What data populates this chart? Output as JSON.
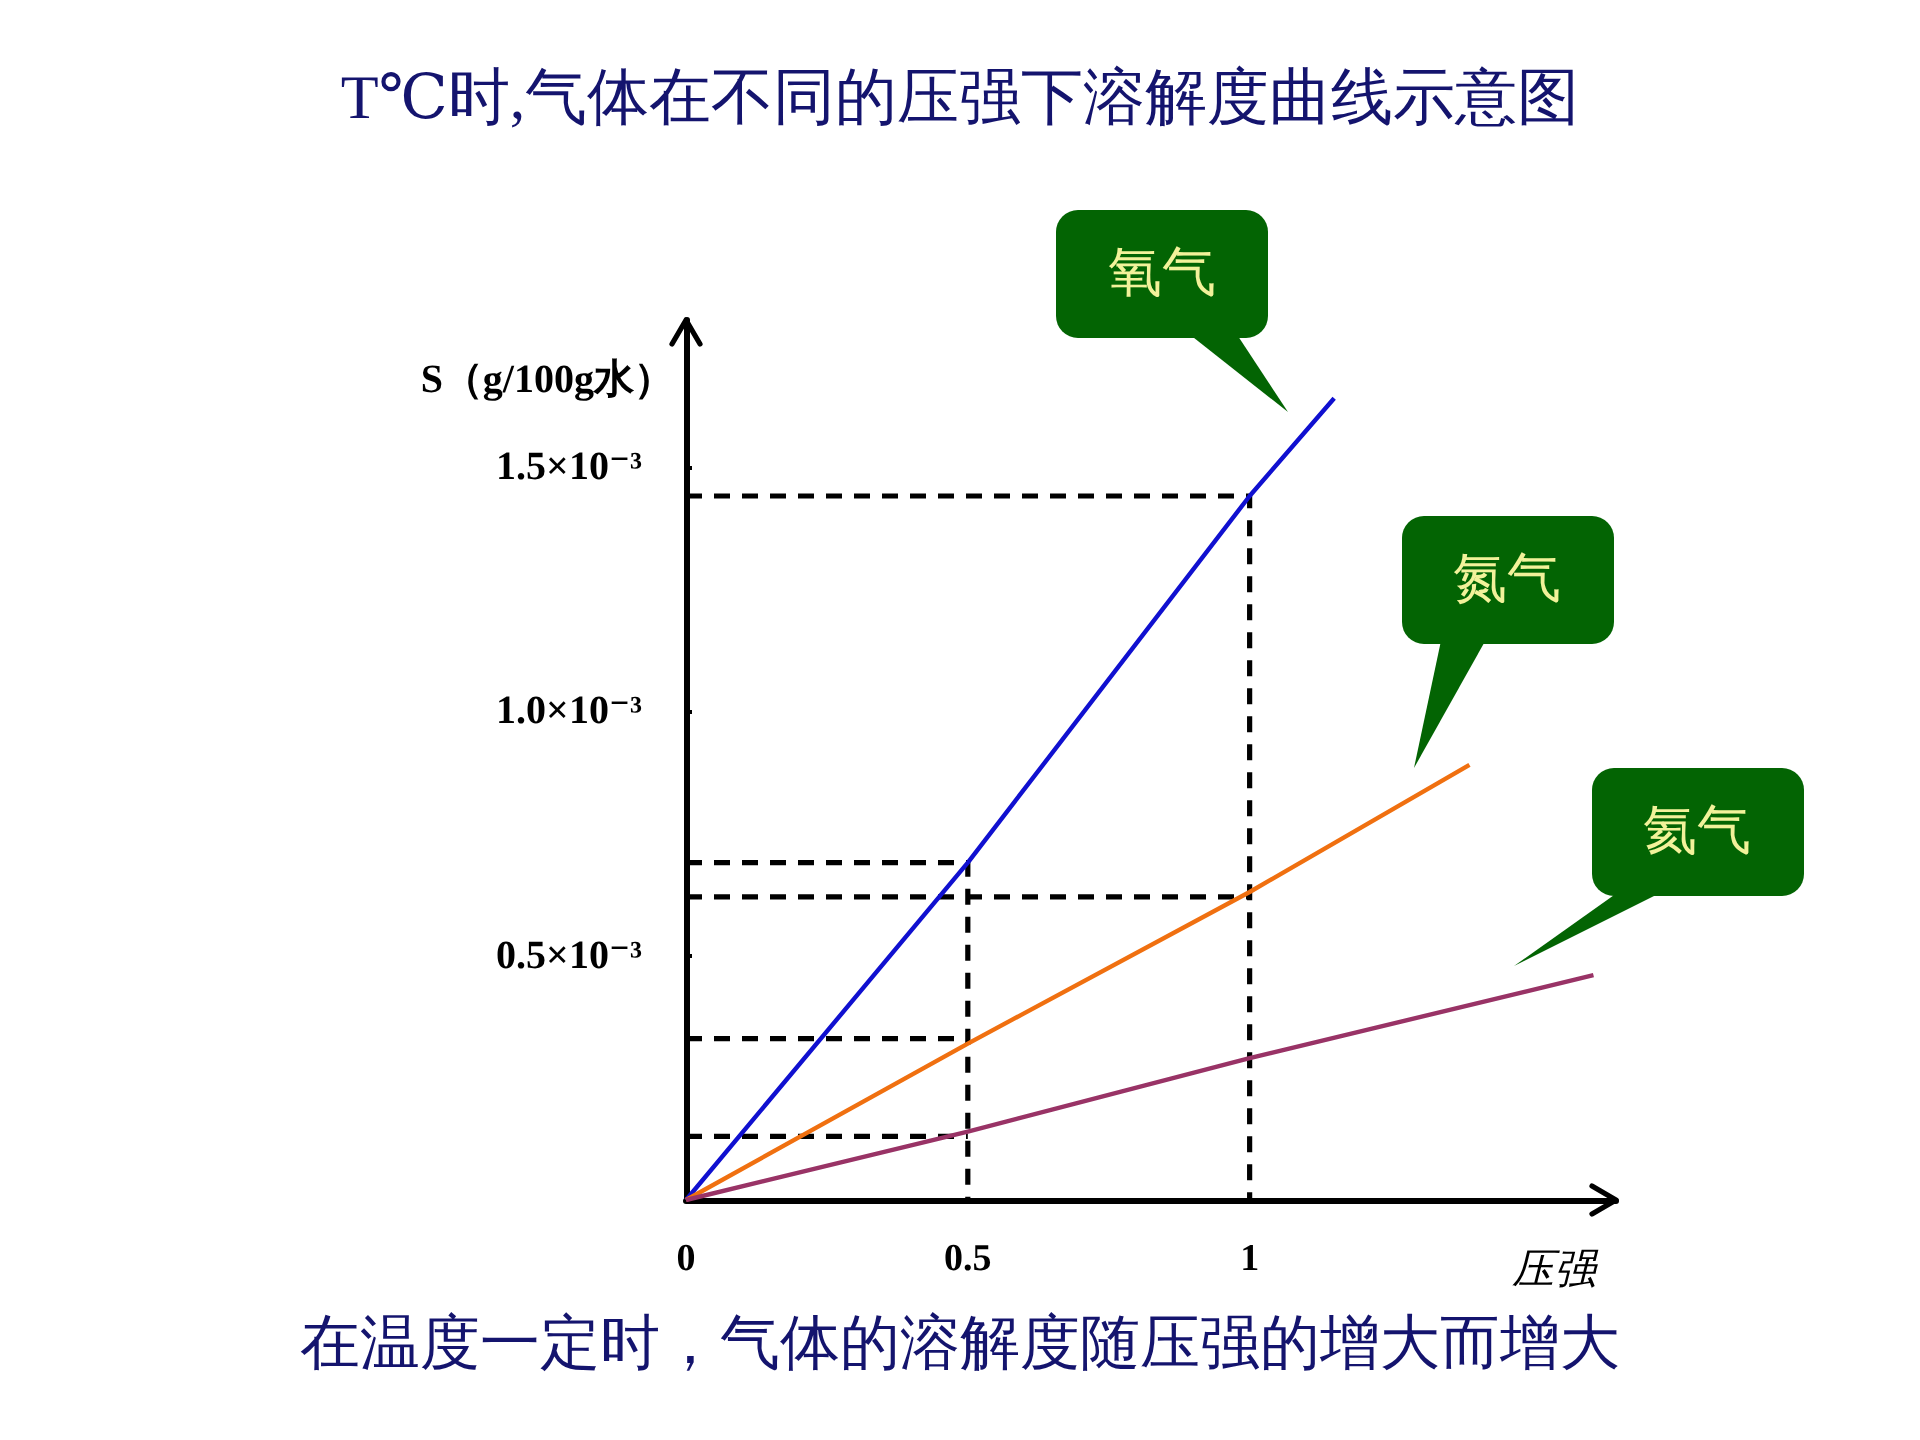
{
  "chart_data": {
    "type": "line",
    "title": "T℃时,气体在不同的压强下溶解度曲线示意图",
    "xlabel": "压强",
    "ylabel": "S（g/100g水）",
    "annotations": [
      "在温度一定时，气体的溶解度随压强的增大而增大"
    ],
    "xlim": [
      0,
      1.65
    ],
    "xticks": [
      0,
      0.5,
      1
    ],
    "ylim": [
      0,
      0.0018
    ],
    "yticks": [
      {
        "value": 0.0005,
        "label": "0.5×10⁻³"
      },
      {
        "value": 0.001,
        "label": "1.0×10⁻³"
      },
      {
        "value": 0.0015,
        "label": "1.5×10⁻³"
      }
    ],
    "grid": false,
    "legend": false,
    "marker": "none",
    "line_style": "solid",
    "series": [
      {
        "name": "氧气",
        "color": "#1010d0",
        "x": [
          0,
          0.5,
          1,
          1.15
        ],
        "values": [
          0,
          0.00069,
          0.00144,
          0.00164
        ]
      },
      {
        "name": "氮气",
        "color": "#f07010",
        "x": [
          0,
          0.5,
          1,
          1.39
        ],
        "values": [
          0,
          0.00032,
          0.00063,
          0.00089
        ]
      },
      {
        "name": "氦气",
        "color": "#993366",
        "x": [
          0,
          0.5,
          1,
          1.61
        ],
        "values": [
          0,
          0.00014,
          0.00029,
          0.00046
        ]
      },
      {
        "color": "#000000",
        "line_style": "dashed",
        "x": [
          0,
          1,
          1
        ],
        "values": [
          0.00144,
          0.00144,
          0
        ]
      },
      {
        "color": "#000000",
        "line_style": "dashed",
        "x": [
          0,
          0.5,
          0.5
        ],
        "values": [
          0.00069,
          0.00069,
          0
        ]
      },
      {
        "color": "#000000",
        "line_style": "dashed",
        "x": [
          0,
          1
        ],
        "values": [
          0.00062,
          0.00062
        ]
      },
      {
        "color": "#000000",
        "line_style": "dashed",
        "x": [
          0,
          0.5
        ],
        "values": [
          0.00033,
          0.00033
        ]
      },
      {
        "color": "#000000",
        "line_style": "dashed",
        "x": [
          0,
          0.5
        ],
        "values": [
          0.00013,
          0.00013
        ]
      }
    ]
  }
}
